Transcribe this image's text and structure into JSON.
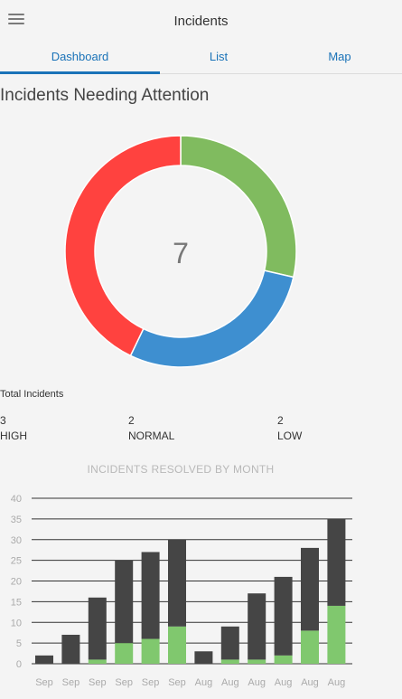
{
  "header": {
    "title": "Incidents",
    "menu_icon": "hamburger-menu-icon"
  },
  "tabs": [
    {
      "label": "Dashboard",
      "active": true
    },
    {
      "label": "List",
      "active": false
    },
    {
      "label": "Map",
      "active": false
    }
  ],
  "section_title": "Incidents Needing Attention",
  "donut": {
    "center_value": "7",
    "segments": [
      {
        "label": "NORMAL",
        "value": 2,
        "color": "#80bb5f"
      },
      {
        "label": "LOW",
        "value": 2,
        "color": "#3e8fd0"
      },
      {
        "label": "HIGH",
        "value": 3,
        "color": "#ff423f"
      }
    ]
  },
  "totals": {
    "label": "Total Incidents",
    "high": {
      "count": "3",
      "label": "HIGH"
    },
    "normal": {
      "count": "2",
      "label": "NORMAL"
    },
    "low": {
      "count": "2",
      "label": "LOW"
    }
  },
  "chart_data": {
    "type": "bar",
    "title": "INCIDENTS RESOLVED BY MONTH",
    "categories": [
      "Sep",
      "Sep",
      "Sep",
      "Sep",
      "Sep",
      "Sep",
      "Aug",
      "Aug",
      "Aug",
      "Aug",
      "Aug",
      "Aug"
    ],
    "series": [
      {
        "values": [
          0,
          0,
          1,
          5,
          6,
          9,
          0,
          1,
          1,
          2,
          8,
          14
        ],
        "color": "#80c86e"
      },
      {
        "values": [
          2,
          7,
          15,
          20,
          21,
          21,
          3,
          8,
          16,
          19,
          20,
          21
        ],
        "color": "#454545"
      }
    ],
    "stacked": true,
    "ylim": [
      0,
      40
    ],
    "yticks": [
      0,
      5,
      10,
      15,
      20,
      25,
      30,
      35,
      40
    ],
    "grid": true
  }
}
